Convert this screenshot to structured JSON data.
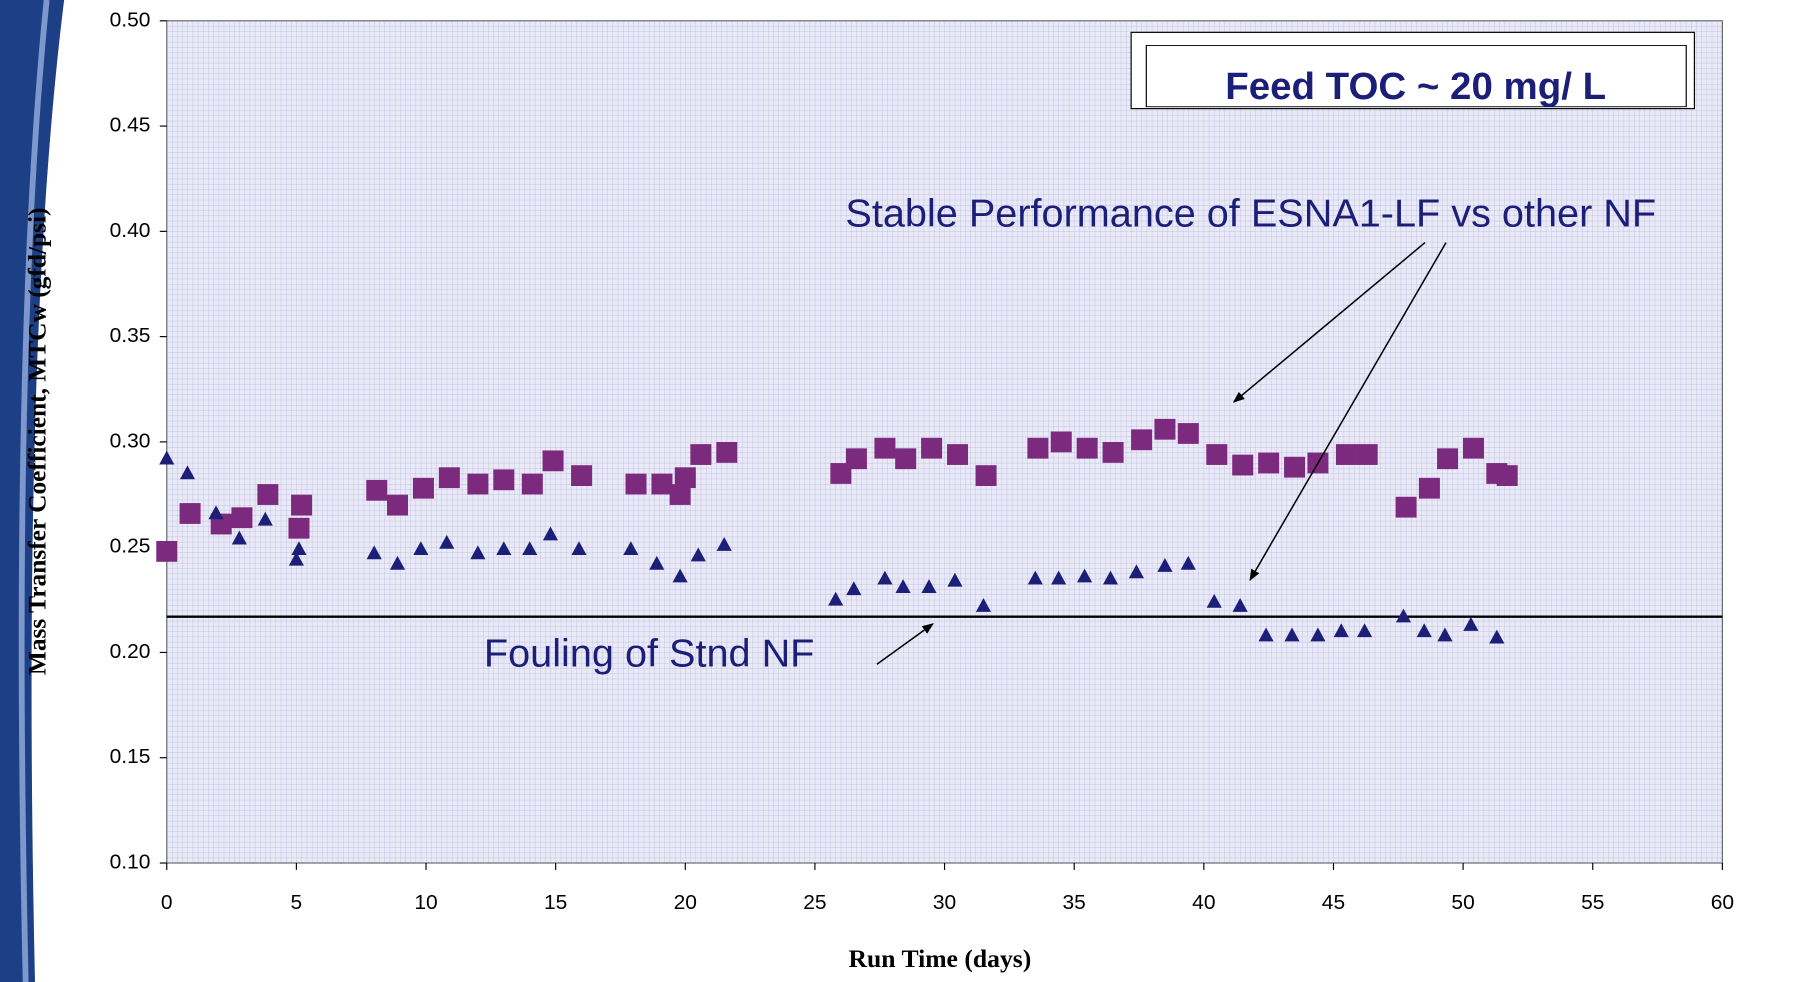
{
  "chart_data": {
    "type": "scatter",
    "xlabel": "Run Time (days)",
    "ylabel": "Mass Transfer Coefficient, MTCw (gfd/psi)",
    "annotations": [
      "Feed TOC ~  20 mg/ L",
      "Stable Performance of ESNA1-LF vs other NF",
      "Fouling of Stnd NF"
    ],
    "xlim": [
      0,
      60
    ],
    "ylim": [
      0.1,
      0.5
    ],
    "xticks": [
      0,
      5,
      10,
      15,
      20,
      25,
      30,
      35,
      40,
      45,
      50,
      55,
      60
    ],
    "yticks": [
      {
        "value": 0.1,
        "label": "0.10"
      },
      {
        "value": 0.15,
        "label": "0.15"
      },
      {
        "value": 0.2,
        "label": "0.20"
      },
      {
        "value": 0.25,
        "label": "0.25"
      },
      {
        "value": 0.3,
        "label": "0.30"
      },
      {
        "value": 0.35,
        "label": "0.35"
      },
      {
        "value": 0.4,
        "label": "0.40"
      },
      {
        "value": 0.45,
        "label": "0.45"
      },
      {
        "value": 0.5,
        "label": "0.50"
      }
    ],
    "hline": 0.217,
    "series": [
      {
        "marker": "square",
        "color": "#7b2a7e",
        "x": [
          0,
          0.9,
          2.1,
          2.9,
          3.9,
          5.1,
          5.2,
          8.1,
          8.9,
          9.9,
          10.9,
          12.0,
          13.0,
          14.1,
          14.9,
          16.0,
          18.1,
          19.1,
          19.8,
          20.0,
          20.6,
          21.6,
          26.0,
          26.6,
          27.7,
          28.5,
          29.5,
          30.5,
          31.6,
          33.6,
          34.5,
          35.5,
          36.5,
          37.6,
          38.5,
          39.4,
          40.5,
          41.5,
          42.5,
          43.5,
          44.4,
          45.5,
          46.3,
          47.8,
          48.7,
          49.4,
          50.4,
          51.3,
          51.7
        ],
        "values": [
          0.248,
          0.266,
          0.261,
          0.264,
          0.275,
          0.259,
          0.27,
          0.277,
          0.27,
          0.278,
          0.283,
          0.28,
          0.282,
          0.28,
          0.291,
          0.284,
          0.28,
          0.28,
          0.275,
          0.283,
          0.294,
          0.295,
          0.285,
          0.292,
          0.297,
          0.292,
          0.297,
          0.294,
          0.284,
          0.297,
          0.3,
          0.297,
          0.295,
          0.301,
          0.306,
          0.304,
          0.294,
          0.289,
          0.29,
          0.288,
          0.29,
          0.294,
          0.294,
          0.269,
          0.278,
          0.292,
          0.297,
          0.285,
          0.284
        ]
      },
      {
        "marker": "triangle",
        "color": "#1c1f78",
        "x": [
          0,
          0.8,
          1.9,
          2.8,
          3.8,
          5.0,
          5.1,
          8.0,
          8.9,
          9.8,
          10.8,
          12.0,
          13.0,
          14.0,
          14.8,
          15.9,
          17.9,
          18.9,
          19.8,
          20.5,
          21.5,
          25.8,
          26.5,
          27.7,
          28.4,
          29.4,
          30.4,
          31.5,
          33.5,
          34.4,
          35.4,
          36.4,
          37.4,
          38.5,
          39.4,
          40.4,
          41.4,
          42.4,
          43.4,
          44.4,
          45.3,
          46.2,
          47.7,
          48.5,
          49.3,
          50.3,
          51.3
        ],
        "values": [
          0.292,
          0.285,
          0.266,
          0.254,
          0.263,
          0.244,
          0.249,
          0.247,
          0.242,
          0.249,
          0.252,
          0.247,
          0.249,
          0.249,
          0.256,
          0.249,
          0.249,
          0.242,
          0.236,
          0.246,
          0.251,
          0.225,
          0.23,
          0.235,
          0.231,
          0.231,
          0.234,
          0.222,
          0.235,
          0.235,
          0.236,
          0.235,
          0.238,
          0.241,
          0.242,
          0.224,
          0.222,
          0.208,
          0.208,
          0.208,
          0.21,
          0.21,
          0.217,
          0.21,
          0.208,
          0.213,
          0.207
        ]
      }
    ]
  }
}
